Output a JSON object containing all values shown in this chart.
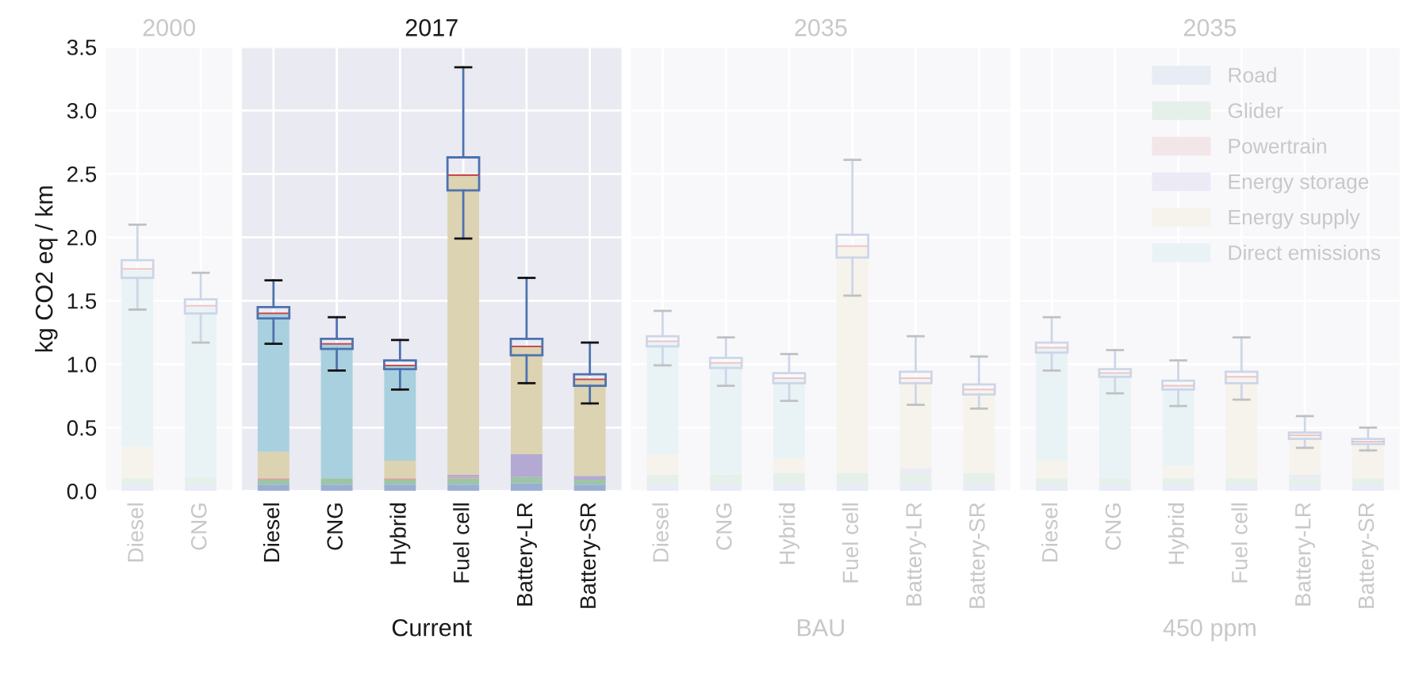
{
  "chart_data": [
    {
      "type": "bar",
      "stacked": true,
      "title": "2000",
      "ylabel": "kg CO2 eq / km",
      "categories": [
        "Diesel",
        "CNG"
      ],
      "ylim": [
        0,
        3.5
      ],
      "yticks": [
        {
          "value": 0,
          "label": "0.0"
        },
        0.5,
        {
          "value": 1,
          "label": "1.0"
        },
        1.5,
        {
          "value": 2,
          "label": "2.0"
        },
        2.5,
        {
          "value": 3,
          "label": "3.0"
        },
        3.5
      ],
      "grid": true,
      "series": [
        {
          "color": "#e8ecf4",
          "values": [
            0.05,
            0.05
          ]
        },
        {
          "color": "#e6f0ea",
          "values": [
            0.05,
            0.06
          ]
        },
        {
          "color": "#f2e6e8",
          "values": [
            null,
            null
          ]
        },
        {
          "color": "#eceaf5",
          "values": [
            0,
            0
          ]
        },
        {
          "color": "#f5f3ec",
          "values": [
            0.25,
            0
          ]
        },
        {
          "color": "#e9f3f6",
          "values": [
            1.39,
            1.34
          ]
        },
        {
          "type": "box",
          "color": "#ccd6e8",
          "boxes": [
            {
              "low": 1.43,
              "q1": 1.68,
              "median": 1.75,
              "q3": 1.82,
              "high": 2.1
            },
            {
              "low": 1.17,
              "q1": 1.4,
              "median": 1.46,
              "q3": 1.51,
              "high": 1.72
            }
          ]
        }
      ]
    },
    {
      "type": "bar",
      "stacked": true,
      "title": "2017",
      "xlabel": "Current",
      "categories": [
        "Diesel",
        "CNG",
        "Hybrid",
        "Fuel cell",
        "Battery-LR",
        "Battery-SR"
      ],
      "ylim": [
        0,
        3.5
      ],
      "yticks": [
        0,
        0.5,
        1,
        1.5,
        2,
        2.5,
        3,
        3.5
      ],
      "grid": true,
      "tick_labels": "x",
      "series": [
        {
          "color": "#9aaed4",
          "values": [
            0.05,
            0.05,
            0.05,
            0.05,
            0.06,
            0.05
          ]
        },
        {
          "color": "#9cc5a6",
          "values": [
            0.04,
            0.05,
            0.04,
            0.05,
            0.05,
            0.04
          ]
        },
        {
          "color": "#e39fa0",
          "values": [
            0.01,
            0,
            0.01,
            0.01,
            0,
            0
          ]
        },
        {
          "color": "#b3a9d3",
          "values": [
            0,
            0,
            0,
            0.02,
            0.18,
            0.03
          ]
        },
        {
          "color": "#dcd3b2",
          "values": [
            0.21,
            0,
            0.14,
            2.36,
            0.85,
            0.76
          ]
        },
        {
          "color": "#a8d0de",
          "values": [
            1.09,
            1.06,
            0.75,
            0,
            0,
            0
          ]
        },
        {
          "type": "box",
          "color": "#4c72b0",
          "boxes": [
            {
              "low": 1.16,
              "q1": 1.36,
              "median": 1.4,
              "q3": 1.45,
              "high": 1.66
            },
            {
              "low": 0.95,
              "q1": 1.12,
              "median": 1.16,
              "q3": 1.2,
              "high": 1.37
            },
            {
              "low": 0.8,
              "q1": 0.96,
              "median": 0.99,
              "q3": 1.03,
              "high": 1.19
            },
            {
              "low": 1.99,
              "q1": 2.37,
              "median": 2.49,
              "q3": 2.63,
              "high": 3.34
            },
            {
              "low": 0.85,
              "q1": 1.07,
              "median": 1.14,
              "q3": 1.2,
              "high": 1.68
            },
            {
              "low": 0.69,
              "q1": 0.83,
              "median": 0.88,
              "q3": 0.92,
              "high": 1.17
            }
          ]
        }
      ]
    },
    {
      "type": "bar",
      "stacked": true,
      "title": "2035",
      "xlabel": "BAU",
      "categories": [
        "Diesel",
        "CNG",
        "Hybrid",
        "Fuel cell",
        "Battery-LR",
        "Battery-SR"
      ],
      "ylim": [
        0,
        3.5
      ],
      "yticks": [
        0,
        0.5,
        1,
        1.5,
        2,
        2.5,
        3,
        3.5
      ],
      "grid": true,
      "tick_labels": "x",
      "series": [
        {
          "color": "#e8ecf4",
          "values": [
            0.06,
            0.06,
            0.06,
            0.06,
            0.06,
            0.06
          ]
        },
        {
          "color": "#e6f0ea",
          "values": [
            0.07,
            0.07,
            0.08,
            0.08,
            0.08,
            0.08
          ]
        },
        {
          "color": "#f2e6e8",
          "values": [
            0,
            0,
            0,
            0,
            0,
            0
          ]
        },
        {
          "color": "#eceaf5",
          "values": [
            0,
            0,
            0,
            0,
            0.04,
            0
          ]
        },
        {
          "color": "#f5f3ec",
          "values": [
            0.16,
            0,
            0.12,
            1.79,
            0.71,
            0.66
          ]
        },
        {
          "color": "#e9f3f6",
          "values": [
            0.89,
            0.87,
            0.63,
            0,
            0,
            0
          ]
        },
        {
          "type": "box",
          "color": "#ccd6e8",
          "boxes": [
            {
              "low": 0.99,
              "q1": 1.14,
              "median": 1.18,
              "q3": 1.22,
              "high": 1.42
            },
            {
              "low": 0.83,
              "q1": 0.97,
              "median": 1.01,
              "q3": 1.05,
              "high": 1.21
            },
            {
              "low": 0.71,
              "q1": 0.85,
              "median": 0.89,
              "q3": 0.93,
              "high": 1.08
            },
            {
              "low": 1.54,
              "q1": 1.84,
              "median": 1.93,
              "q3": 2.02,
              "high": 2.61
            },
            {
              "low": 0.68,
              "q1": 0.85,
              "median": 0.89,
              "q3": 0.94,
              "high": 1.22
            },
            {
              "low": 0.65,
              "q1": 0.76,
              "median": 0.8,
              "q3": 0.84,
              "high": 1.06
            }
          ]
        }
      ]
    },
    {
      "type": "bar",
      "stacked": true,
      "title": "2035",
      "xlabel": "450 ppm",
      "categories": [
        "Diesel",
        "CNG",
        "Hybrid",
        "Fuel cell",
        "Battery-LR",
        "Battery-SR"
      ],
      "ylim": [
        0,
        3.5
      ],
      "yticks": [
        0,
        0.5,
        1,
        1.5,
        2,
        2.5,
        3,
        3.5
      ],
      "grid": true,
      "tick_labels": "x",
      "legend": "top right",
      "series": [
        {
          "name": "Road",
          "color": "#e8ecf4",
          "values": [
            0.05,
            0.05,
            0.05,
            0.05,
            0.05,
            0.05
          ]
        },
        {
          "name": "Glider",
          "color": "#e6f0ea",
          "values": [
            0.05,
            0.05,
            0.05,
            0.05,
            0.05,
            0.05
          ]
        },
        {
          "name": "Powertrain",
          "color": "#f2e6e8",
          "values": [
            0,
            0,
            0,
            0,
            0,
            0
          ]
        },
        {
          "name": "Energy storage",
          "color": "#eceaf5",
          "values": [
            0,
            0,
            0,
            0,
            0.03,
            0
          ]
        },
        {
          "name": "Energy supply",
          "color": "#f5f3ec",
          "values": [
            0.14,
            0,
            0.1,
            0.8,
            0.31,
            0.29
          ]
        },
        {
          "name": "Direct emissions",
          "color": "#e9f3f6",
          "values": [
            0.89,
            0.83,
            0.63,
            0,
            0,
            0
          ]
        },
        {
          "type": "box",
          "color": "#ccd6e8",
          "boxes": [
            {
              "low": 0.95,
              "q1": 1.09,
              "median": 1.13,
              "q3": 1.17,
              "high": 1.37
            },
            {
              "low": 0.77,
              "q1": 0.9,
              "median": 0.93,
              "q3": 0.96,
              "high": 1.11
            },
            {
              "low": 0.67,
              "q1": 0.8,
              "median": 0.83,
              "q3": 0.87,
              "high": 1.03
            },
            {
              "low": 0.72,
              "q1": 0.85,
              "median": 0.9,
              "q3": 0.94,
              "high": 1.21
            },
            {
              "low": 0.34,
              "q1": 0.41,
              "median": 0.44,
              "q3": 0.46,
              "high": 0.59
            },
            {
              "low": 0.32,
              "q1": 0.37,
              "median": 0.39,
              "q3": 0.41,
              "high": 0.5
            }
          ]
        }
      ]
    }
  ]
}
